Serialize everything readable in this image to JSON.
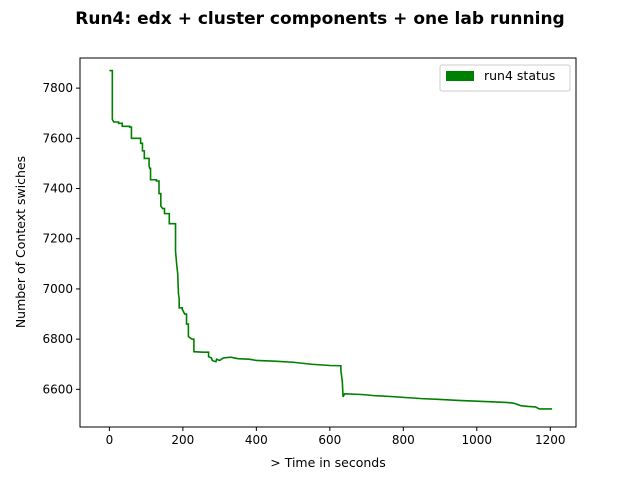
{
  "chart_data": {
    "type": "line",
    "title": "Run4: edx + cluster components + one lab running",
    "xlabel": "> Time  in seconds",
    "ylabel": "Number of Context swiches",
    "xlim": [
      -80,
      1270
    ],
    "ylim": [
      6450,
      7920
    ],
    "xticks": [
      0,
      200,
      400,
      600,
      800,
      1000,
      1200
    ],
    "yticks": [
      6600,
      6800,
      7000,
      7200,
      7400,
      7600,
      7800
    ],
    "grid": false,
    "legend_position": "top-right",
    "series": [
      {
        "name": "run4 status",
        "color": "#008000",
        "points": [
          [
            0,
            7870
          ],
          [
            8,
            7870
          ],
          [
            8,
            7675
          ],
          [
            12,
            7665
          ],
          [
            25,
            7665
          ],
          [
            25,
            7660
          ],
          [
            35,
            7660
          ],
          [
            35,
            7648
          ],
          [
            55,
            7648
          ],
          [
            55,
            7645
          ],
          [
            60,
            7645
          ],
          [
            60,
            7600
          ],
          [
            85,
            7600
          ],
          [
            85,
            7580
          ],
          [
            90,
            7580
          ],
          [
            90,
            7550
          ],
          [
            95,
            7550
          ],
          [
            95,
            7520
          ],
          [
            108,
            7520
          ],
          [
            108,
            7490
          ],
          [
            110,
            7480
          ],
          [
            112,
            7480
          ],
          [
            112,
            7435
          ],
          [
            128,
            7435
          ],
          [
            128,
            7430
          ],
          [
            135,
            7430
          ],
          [
            135,
            7380
          ],
          [
            140,
            7380
          ],
          [
            140,
            7330
          ],
          [
            145,
            7320
          ],
          [
            150,
            7320
          ],
          [
            150,
            7300
          ],
          [
            163,
            7300
          ],
          [
            163,
            7260
          ],
          [
            180,
            7260
          ],
          [
            180,
            7150
          ],
          [
            183,
            7100
          ],
          [
            186,
            7060
          ],
          [
            188,
            6980
          ],
          [
            190,
            6960
          ],
          [
            190,
            6925
          ],
          [
            198,
            6925
          ],
          [
            198,
            6920
          ],
          [
            205,
            6900
          ],
          [
            210,
            6900
          ],
          [
            210,
            6860
          ],
          [
            215,
            6860
          ],
          [
            215,
            6810
          ],
          [
            225,
            6800
          ],
          [
            230,
            6800
          ],
          [
            230,
            6750
          ],
          [
            255,
            6748
          ],
          [
            270,
            6748
          ],
          [
            270,
            6730
          ],
          [
            278,
            6725
          ],
          [
            280,
            6715
          ],
          [
            290,
            6710
          ],
          [
            292,
            6720
          ],
          [
            300,
            6715
          ],
          [
            305,
            6720
          ],
          [
            310,
            6725
          ],
          [
            330,
            6728
          ],
          [
            350,
            6722
          ],
          [
            380,
            6720
          ],
          [
            400,
            6715
          ],
          [
            450,
            6712
          ],
          [
            500,
            6708
          ],
          [
            550,
            6700
          ],
          [
            600,
            6695
          ],
          [
            630,
            6694
          ],
          [
            630,
            6675
          ],
          [
            634,
            6630
          ],
          [
            636,
            6570
          ],
          [
            640,
            6582
          ],
          [
            680,
            6580
          ],
          [
            700,
            6578
          ],
          [
            720,
            6575
          ],
          [
            760,
            6572
          ],
          [
            800,
            6568
          ],
          [
            850,
            6563
          ],
          [
            900,
            6560
          ],
          [
            950,
            6556
          ],
          [
            1000,
            6553
          ],
          [
            1050,
            6550
          ],
          [
            1080,
            6548
          ],
          [
            1100,
            6545
          ],
          [
            1120,
            6535
          ],
          [
            1140,
            6532
          ],
          [
            1160,
            6530
          ],
          [
            1170,
            6522
          ],
          [
            1205,
            6522
          ]
        ]
      }
    ]
  }
}
